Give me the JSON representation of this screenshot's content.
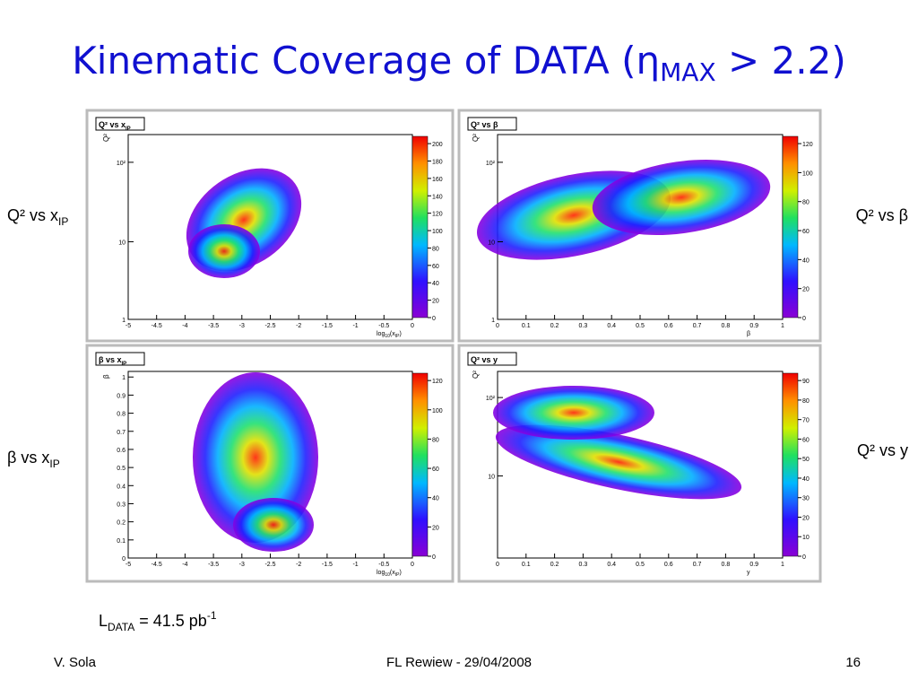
{
  "header": {
    "title": {
      "text": "Kinematic Coverage of DATA (η",
      "sub": "MAX",
      "tail": " > 2.2)"
    }
  },
  "side_labels": [
    {
      "text": "Q² vs x",
      "sub": "IP"
    },
    {
      "text": "Q² vs β",
      "sub": ""
    },
    {
      "text": "β vs x",
      "sub": "IP"
    },
    {
      "text": "Q² vs y",
      "sub": ""
    }
  ],
  "panels": [
    {
      "title": {
        "text": "Q² vs x",
        "sub": "IP"
      },
      "y_label": "Q²",
      "x_label": {
        "text": "log",
        "sub": "10",
        "tail": "(x",
        "sub2": "IP",
        "end": ")"
      },
      "x_ticks": [
        "-5",
        "-4.5",
        "-4",
        "-3.5",
        "-3",
        "-2.5",
        "-2",
        "-1.5",
        "-1",
        "-0.5",
        "0"
      ],
      "y_ticks": [
        "1",
        "10",
        "10²"
      ],
      "z_ticks": [
        "0",
        "20",
        "40",
        "60",
        "80",
        "100",
        "120",
        "140",
        "160",
        "180",
        "200"
      ]
    },
    {
      "title": {
        "text": "Q² vs β",
        "sub": ""
      },
      "y_label": "Q²",
      "x_label": {
        "text": "β",
        "sub": "",
        "tail": "",
        "sub2": "",
        "end": ""
      },
      "x_ticks": [
        "0",
        "0.1",
        "0.2",
        "0.3",
        "0.4",
        "0.5",
        "0.6",
        "0.7",
        "0.8",
        "0.9",
        "1"
      ],
      "y_ticks": [
        "1",
        "10",
        "10²"
      ],
      "z_ticks": [
        "0",
        "20",
        "40",
        "60",
        "80",
        "100",
        "120"
      ]
    },
    {
      "title": {
        "text": "β vs x",
        "sub": "IP"
      },
      "y_label": "β",
      "x_label": {
        "text": "log",
        "sub": "10",
        "tail": "(x",
        "sub2": "IP",
        "end": ")"
      },
      "x_ticks": [
        "-5",
        "-4.5",
        "-4",
        "-3.5",
        "-3",
        "-2.5",
        "-2",
        "-1.5",
        "-1",
        "-0.5",
        "0"
      ],
      "y_ticks": [
        "0",
        "0.1",
        "0.2",
        "0.3",
        "0.4",
        "0.5",
        "0.6",
        "0.7",
        "0.8",
        "0.9",
        "1"
      ],
      "z_ticks": [
        "0",
        "20",
        "40",
        "60",
        "80",
        "100",
        "120"
      ]
    },
    {
      "title": {
        "text": "Q² vs y",
        "sub": ""
      },
      "y_label": "Q²",
      "x_label": {
        "text": "y",
        "sub": "",
        "tail": "",
        "sub2": "",
        "end": ""
      },
      "x_ticks": [
        "0",
        "0.1",
        "0.2",
        "0.3",
        "0.4",
        "0.5",
        "0.6",
        "0.7",
        "0.8",
        "0.9",
        "1"
      ],
      "y_ticks": [
        "10",
        "10²"
      ],
      "z_ticks": [
        "0",
        "10",
        "20",
        "30",
        "40",
        "50",
        "60",
        "70",
        "80",
        "90"
      ]
    }
  ],
  "luminosity": {
    "text": "L",
    "sub": "DATA",
    "mid": " = 41.5 pb",
    "sup": "-1"
  },
  "footer": {
    "author": "V. Sola",
    "event": "FL Rewiew - 29/04/2008",
    "page": "16"
  }
}
